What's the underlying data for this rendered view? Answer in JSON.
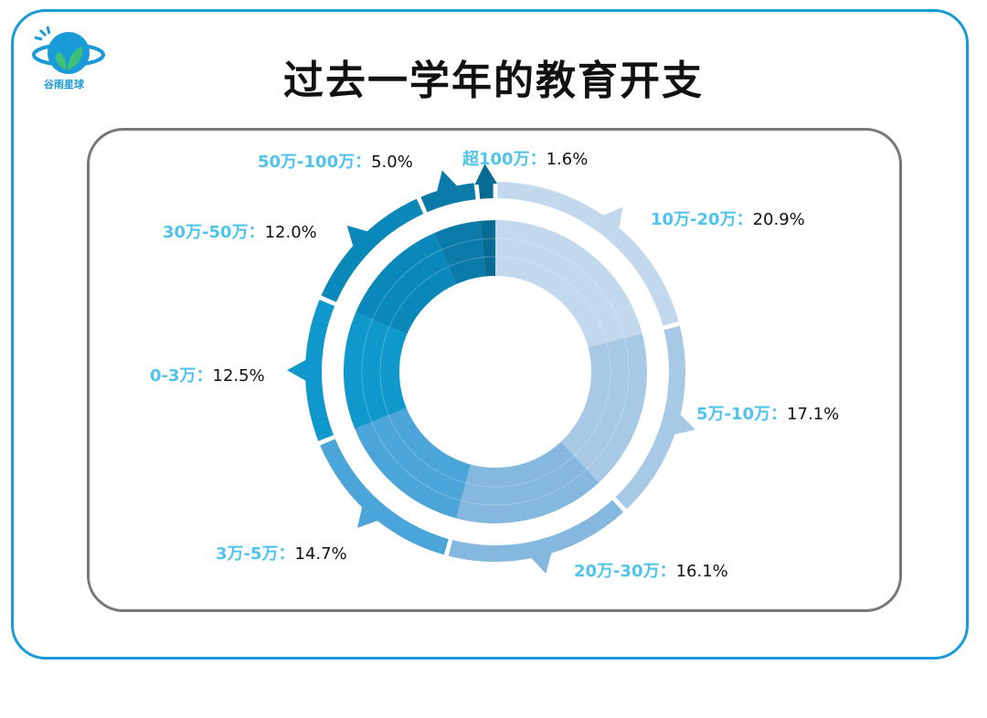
{
  "title": "过去一学年的教育开支",
  "logo_text": "谷雨星球",
  "chart_data": {
    "type": "pie",
    "variant": "donut",
    "title": "过去一学年的教育开支",
    "unit": "%",
    "categories": [
      "10万-20万",
      "5万-10万",
      "20万-30万",
      "3万-5万",
      "0-3万",
      "30万-50万",
      "50万-100万",
      "超100万"
    ],
    "values": [
      20.9,
      17.1,
      16.1,
      14.7,
      12.5,
      12.0,
      5.0,
      1.6
    ],
    "value_labels": [
      "20.9%",
      "17.1%",
      "16.1%",
      "14.7%",
      "12.5%",
      "12.0%",
      "5.0%",
      "1.6%"
    ],
    "colors": [
      "#c2d9ed",
      "#a8c9e5",
      "#84b8df",
      "#4ca5d8",
      "#0f98cc",
      "#0b88ba",
      "#0a7aa8",
      "#076b93"
    ],
    "label_separator": "："
  }
}
